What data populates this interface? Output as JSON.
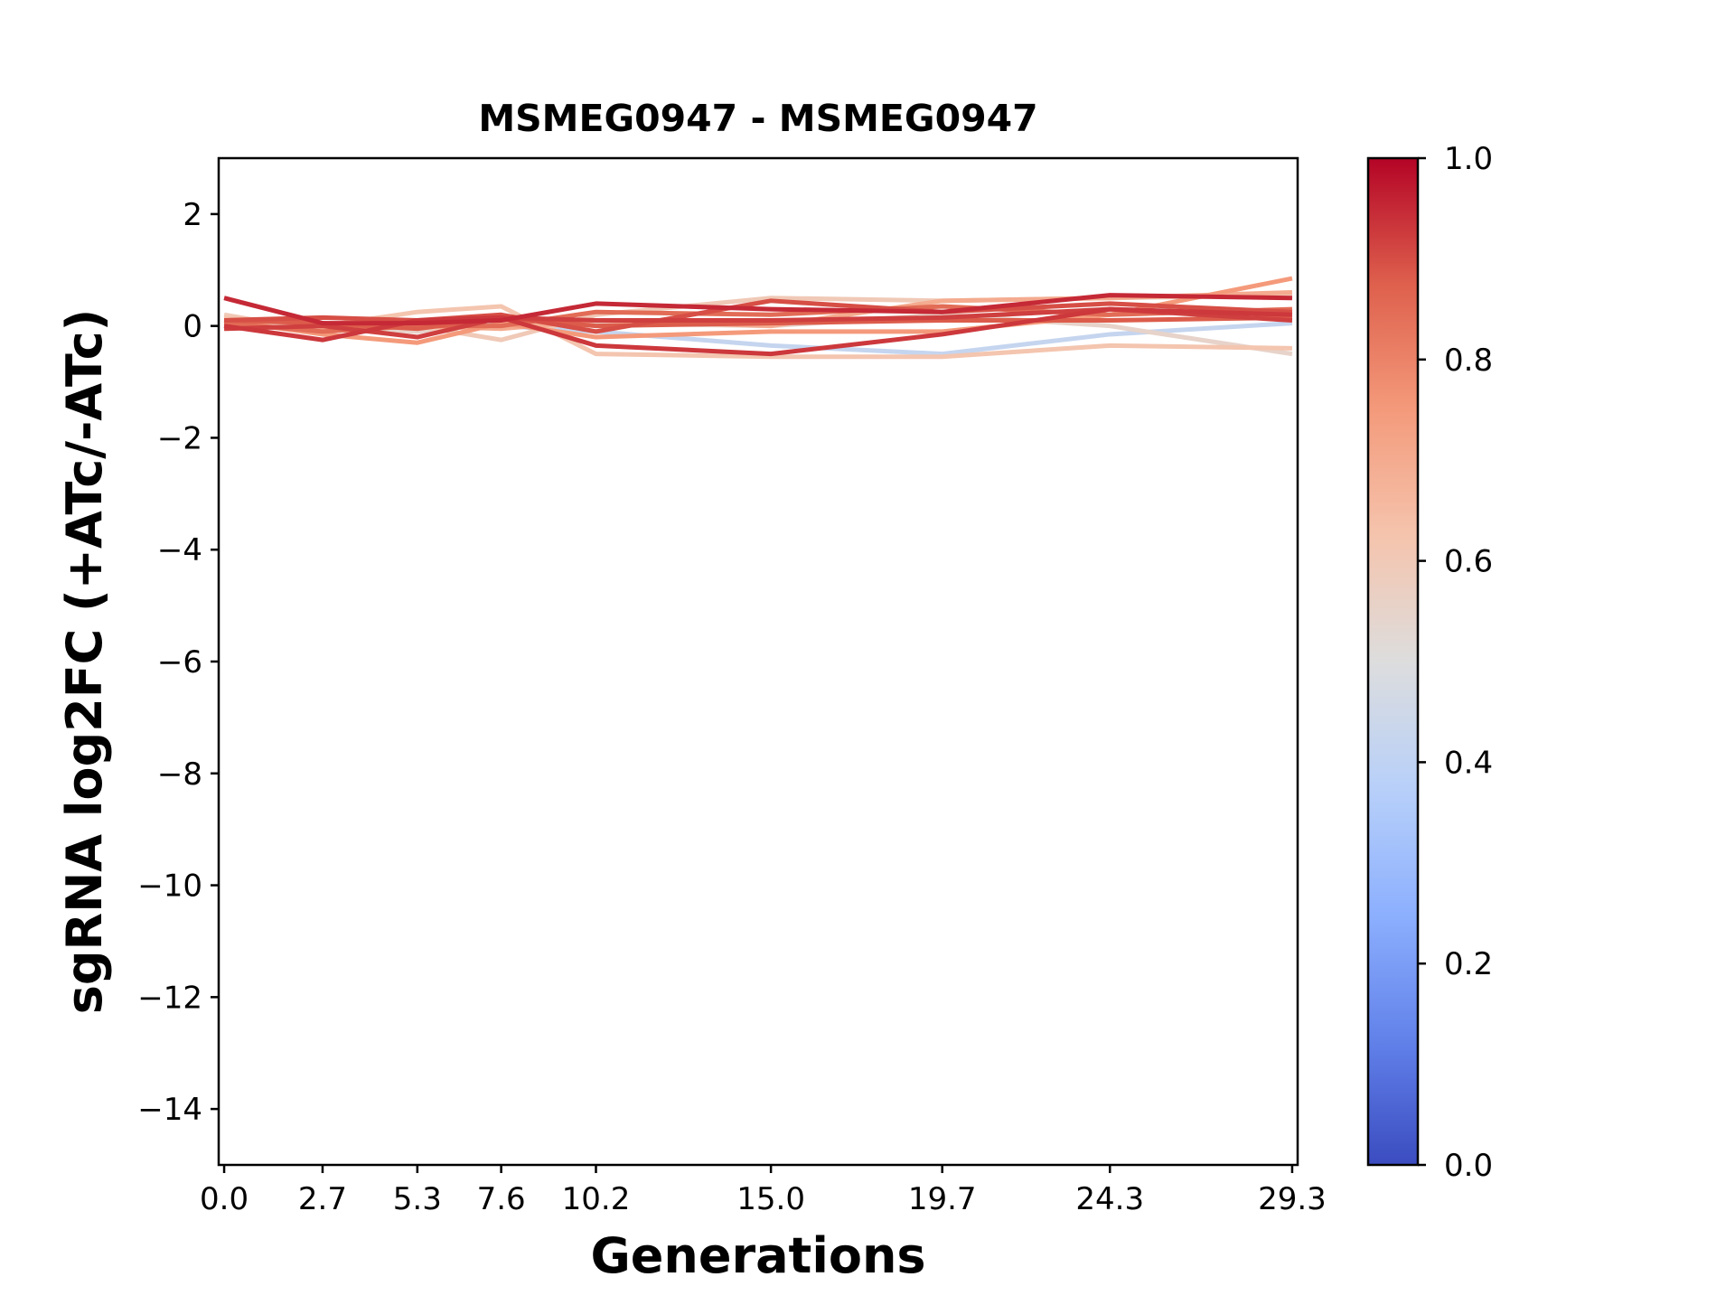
{
  "chart_data": {
    "type": "line",
    "title": "MSMEG0947 - MSMEG0947",
    "xlabel": "Generations",
    "ylabel": "sgRNA log2FC (+ATc/-ATc)",
    "x": [
      0.0,
      2.7,
      5.3,
      7.6,
      10.2,
      15.0,
      19.7,
      24.3,
      29.3
    ],
    "x_tick_labels": [
      "0.0",
      "2.7",
      "5.3",
      "7.6",
      "10.2",
      "15.0",
      "19.7",
      "24.3",
      "29.3"
    ],
    "xlim": [
      -0.15,
      29.45
    ],
    "ylim": [
      -15,
      3
    ],
    "y_ticks": [
      2,
      0,
      -2,
      -4,
      -6,
      -8,
      -10,
      -12,
      -14
    ],
    "y_tick_labels": [
      "2",
      "0",
      "−2",
      "−4",
      "−6",
      "−8",
      "−10",
      "−12",
      "−14"
    ],
    "grid": false,
    "colormap": "coolwarm",
    "colorbar": {
      "range": [
        0.0,
        1.0
      ],
      "ticks": [
        0.0,
        0.2,
        0.4,
        0.6,
        0.8,
        1.0
      ],
      "tick_labels": [
        "0.0",
        "0.2",
        "0.4",
        "0.6",
        "0.8",
        "1.0"
      ]
    },
    "series": [
      {
        "color_value": 0.42,
        "values": [
          0.0,
          -0.05,
          0.0,
          0.0,
          -0.1,
          -0.35,
          -0.5,
          -0.15,
          0.05
        ]
      },
      {
        "color_value": 0.55,
        "values": [
          0.05,
          0.0,
          -0.1,
          0.1,
          0.05,
          0.0,
          0.2,
          0.0,
          -0.5
        ]
      },
      {
        "color_value": 0.6,
        "values": [
          0.2,
          -0.1,
          0.0,
          -0.25,
          0.2,
          0.5,
          0.45,
          0.5,
          0.55
        ]
      },
      {
        "color_value": 0.62,
        "values": [
          0.15,
          0.0,
          0.25,
          0.35,
          -0.5,
          -0.55,
          -0.55,
          -0.35,
          -0.4
        ]
      },
      {
        "color_value": 0.7,
        "values": [
          0.0,
          -0.05,
          0.0,
          -0.05,
          0.1,
          0.0,
          0.45,
          0.5,
          0.6
        ]
      },
      {
        "color_value": 0.75,
        "values": [
          0.1,
          -0.15,
          -0.3,
          0.05,
          -0.2,
          -0.1,
          -0.1,
          0.2,
          0.85
        ]
      },
      {
        "color_value": 0.85,
        "values": [
          0.05,
          -0.1,
          0.0,
          0.0,
          0.25,
          0.2,
          0.35,
          0.2,
          0.3
        ]
      },
      {
        "color_value": 0.88,
        "values": [
          0.1,
          0.05,
          -0.05,
          0.15,
          0.0,
          0.05,
          0.1,
          0.1,
          0.15
        ]
      },
      {
        "color_value": 0.9,
        "values": [
          0.1,
          0.15,
          0.1,
          0.2,
          -0.1,
          0.45,
          0.25,
          0.4,
          0.25
        ]
      },
      {
        "color_value": 0.92,
        "values": [
          -0.05,
          0.0,
          -0.2,
          0.15,
          0.1,
          0.1,
          0.15,
          0.3,
          0.1
        ]
      },
      {
        "color_value": 0.93,
        "values": [
          0.0,
          -0.25,
          0.1,
          0.15,
          -0.35,
          -0.5,
          -0.15,
          0.3,
          0.2
        ]
      },
      {
        "color_value": 0.95,
        "values": [
          0.5,
          0.05,
          0.05,
          0.1,
          0.4,
          0.3,
          0.25,
          0.55,
          0.5
        ]
      }
    ]
  }
}
